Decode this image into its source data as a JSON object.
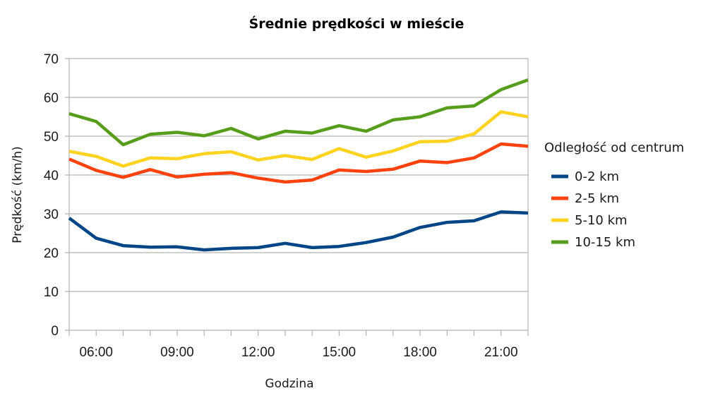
{
  "chart_data": {
    "type": "line",
    "title": "Średnie prędkości w mieście",
    "xlabel": "Godzina",
    "ylabel": "Prędkość (km/h)",
    "ylim": [
      0,
      70
    ],
    "yticks": [
      0,
      10,
      20,
      30,
      40,
      50,
      60,
      70
    ],
    "grid": true,
    "legend_position": "right",
    "legend_title": "Odległość od centrum",
    "x": [
      "05:00",
      "06:00",
      "07:00",
      "08:00",
      "09:00",
      "10:00",
      "11:00",
      "12:00",
      "13:00",
      "14:00",
      "15:00",
      "16:00",
      "17:00",
      "18:00",
      "19:00",
      "20:00",
      "21:00",
      "22:00"
    ],
    "xtick_labels": [
      "06:00",
      "09:00",
      "12:00",
      "15:00",
      "18:00",
      "21:00"
    ],
    "xtick_label_indices": [
      1,
      4,
      7,
      10,
      13,
      16
    ],
    "series": [
      {
        "name": "0-2 km",
        "color": "#004586",
        "values": [
          28.9,
          23.7,
          21.8,
          21.4,
          21.5,
          20.7,
          21.1,
          21.3,
          22.4,
          21.3,
          21.6,
          22.6,
          24.0,
          26.5,
          27.8,
          28.2,
          30.5,
          30.2
        ]
      },
      {
        "name": "2-5 km",
        "color": "#ff420e",
        "values": [
          44.1,
          41.2,
          39.4,
          41.4,
          39.5,
          40.2,
          40.6,
          39.2,
          38.2,
          38.7,
          41.3,
          40.9,
          41.5,
          43.6,
          43.2,
          44.4,
          48.0,
          47.4
        ]
      },
      {
        "name": "5-10 km",
        "color": "#ffd320",
        "values": [
          46.1,
          44.8,
          42.3,
          44.4,
          44.2,
          45.5,
          46.0,
          43.9,
          45.0,
          44.0,
          46.8,
          44.6,
          46.2,
          48.6,
          48.7,
          50.6,
          56.3,
          55.0
        ]
      },
      {
        "name": "10-15 km",
        "color": "#579d1c",
        "values": [
          55.8,
          53.8,
          47.8,
          50.5,
          51.0,
          50.1,
          52.0,
          49.3,
          51.3,
          50.8,
          52.7,
          51.3,
          54.2,
          55.0,
          57.3,
          57.8,
          62.0,
          64.5
        ]
      }
    ]
  }
}
